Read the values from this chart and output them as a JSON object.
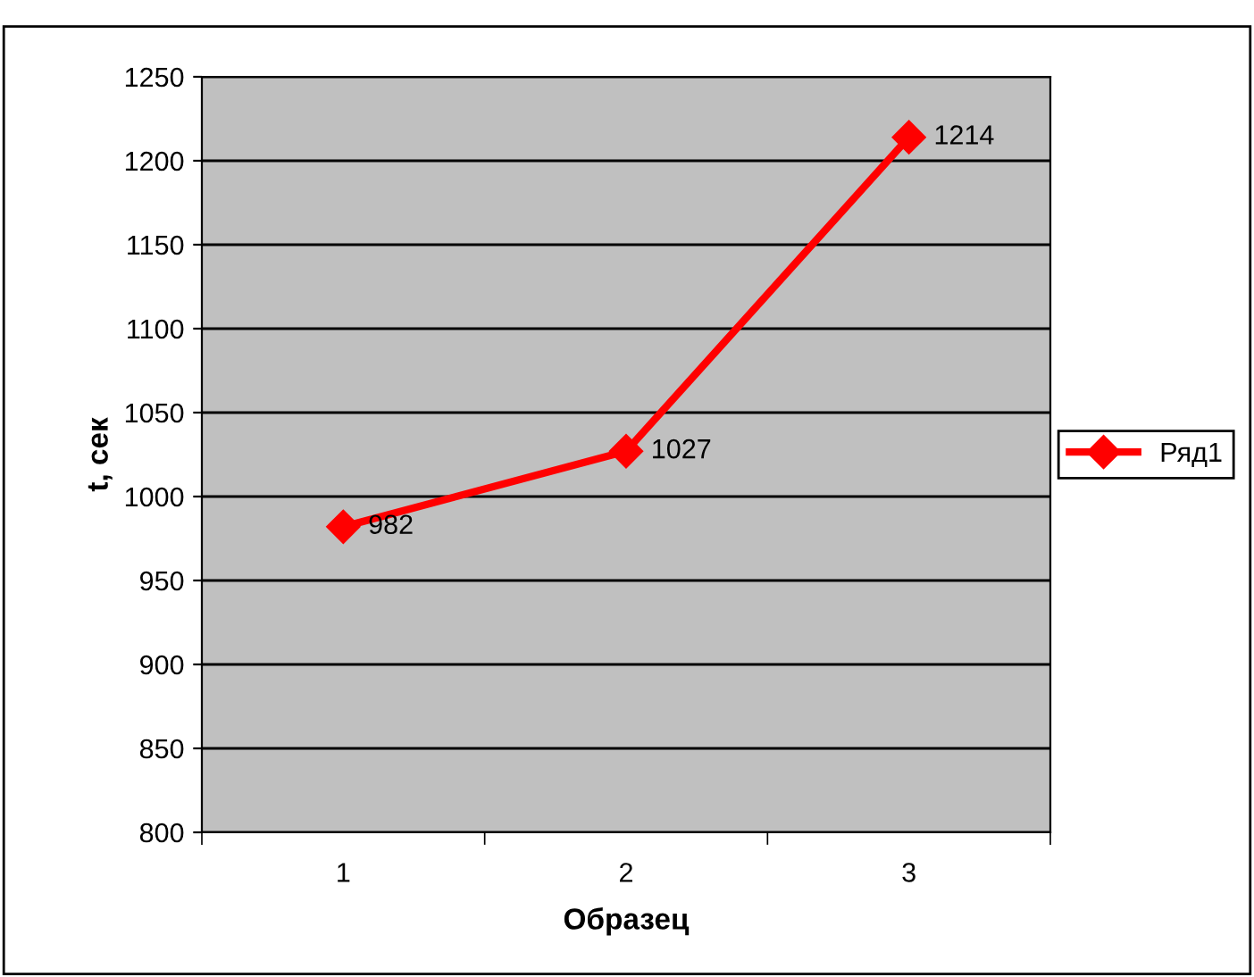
{
  "chart_data": {
    "type": "line",
    "xlabel": "Образец",
    "ylabel": "t, сек",
    "categories": [
      "1",
      "2",
      "3"
    ],
    "series": [
      {
        "name": "Ряд1",
        "color": "#ff0000",
        "values": [
          982,
          1027,
          1214
        ]
      }
    ],
    "ylim": [
      800,
      1250
    ],
    "yticks": [
      800,
      850,
      900,
      950,
      1000,
      1050,
      1100,
      1150,
      1200,
      1250
    ],
    "grid": "y",
    "legend": "right",
    "marker": "diamond",
    "line_style": "solid",
    "data_labels": true
  }
}
